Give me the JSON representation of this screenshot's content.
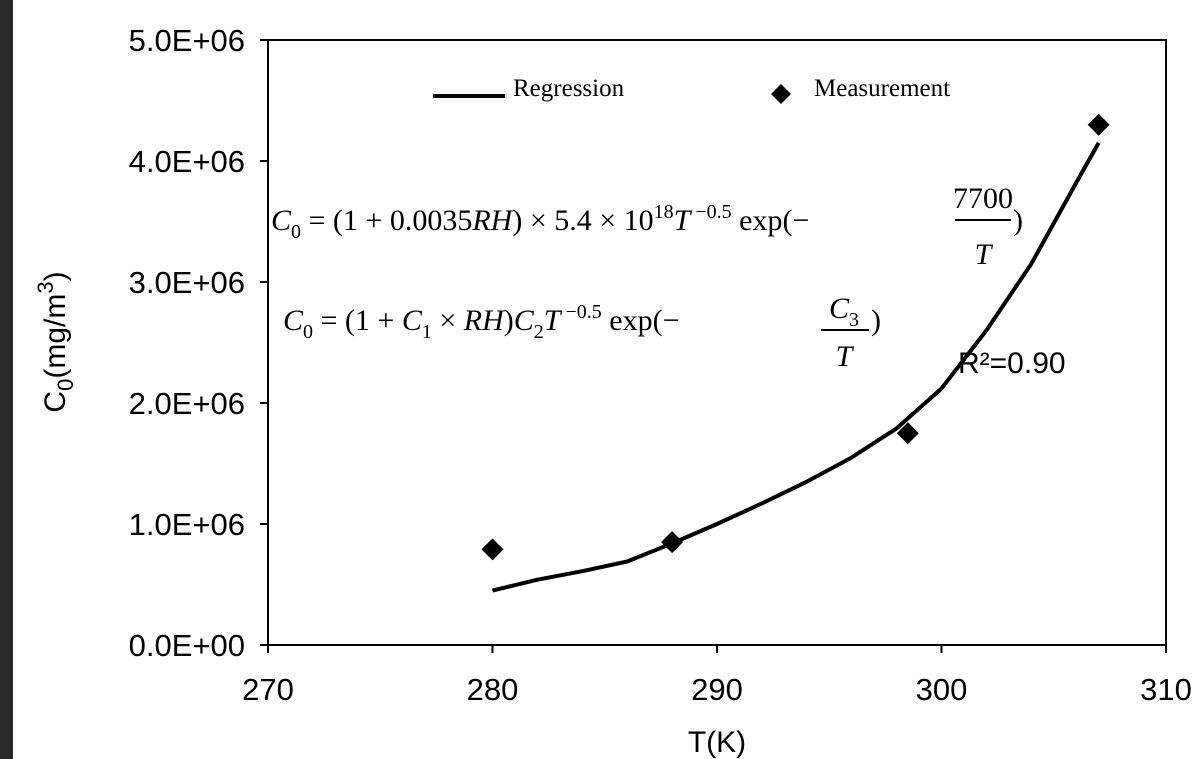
{
  "chart_data": {
    "type": "scatter",
    "title": "",
    "xlabel": "T(K)",
    "ylabel": "C0(mg/m3)",
    "xlim": [
      270,
      310
    ],
    "ylim": [
      0,
      5000000
    ],
    "x_ticks": [
      "270",
      "280",
      "290",
      "300",
      "310"
    ],
    "y_ticks": [
      "0.0E+00",
      "1.0E+06",
      "2.0E+06",
      "3.0E+06",
      "4.0E+06",
      "5.0E+06"
    ],
    "series": [
      {
        "name": "Measurement",
        "kind": "scatter",
        "marker": "diamond",
        "x": [
          280,
          288,
          298.5,
          307
        ],
        "y": [
          790000,
          850000,
          1750000,
          4300000
        ]
      },
      {
        "name": "Regression",
        "kind": "line",
        "x": [
          280,
          282,
          284,
          286,
          288,
          290,
          292,
          294,
          296,
          298,
          300,
          302,
          304,
          306,
          307
        ],
        "y": [
          450000,
          540000,
          610000,
          690000,
          840000,
          1000000,
          1170000,
          1350000,
          1550000,
          1790000,
          2120000,
          2600000,
          3150000,
          3820000,
          4150000
        ]
      }
    ],
    "legend": {
      "placement": "top",
      "entries": [
        "Regression",
        "Measurement"
      ]
    },
    "grid": false,
    "annotations": {
      "equation_fitted": "C0 = (1 + 0.0035RH) × 5.4 × 10^18 T^-0.5 exp(-7700/T)",
      "equation_general": "C0 = (1 + C1 × RH)C2T^-0.5 exp(-C3/T)",
      "r_squared": "R²=0.90"
    },
    "colors": {
      "background": "#ffffff",
      "ink": "#000000",
      "outer_border": "#2a2a2a"
    }
  }
}
